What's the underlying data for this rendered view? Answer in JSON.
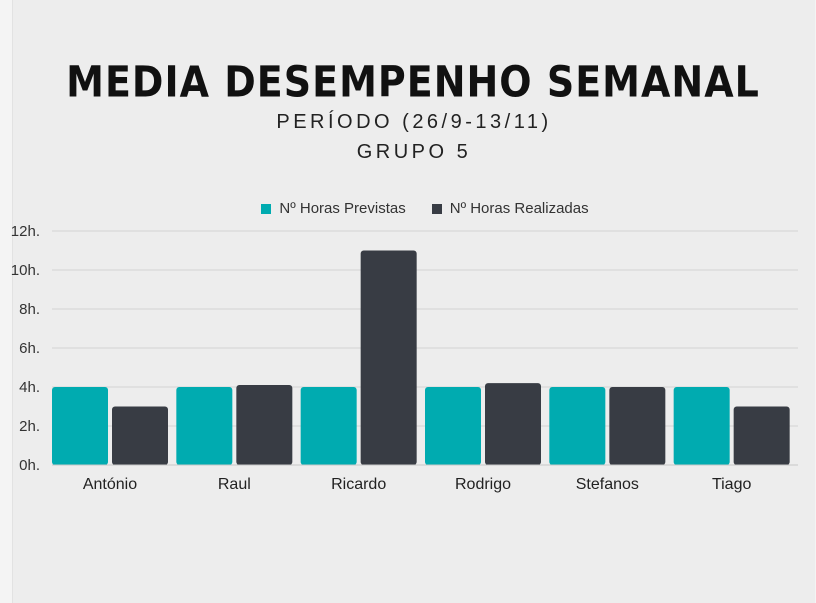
{
  "chart_data": {
    "type": "bar",
    "title": "MEDIA DESEMPENHO SEMANAL",
    "subtitle": "PERÍODO (26/9-13/11)",
    "subtitle2": "GRUPO 5",
    "categories": [
      "António",
      "Raul",
      "Ricardo",
      "Rodrigo",
      "Stefanos",
      "Tiago"
    ],
    "series": [
      {
        "name": "Nº Horas Previstas",
        "color": "#00abb0",
        "values": [
          4,
          4,
          4,
          4,
          4,
          4
        ]
      },
      {
        "name": "Nº Horas Realizadas",
        "color": "#383c44",
        "values": [
          3,
          4.1,
          11,
          4.2,
          4,
          3
        ]
      }
    ],
    "yticks": [
      "0h.",
      "2h.",
      "4h.",
      "6h.",
      "8h.",
      "10h.",
      "12h."
    ],
    "ylim": [
      0,
      12
    ],
    "grid": true,
    "legend_position": "top"
  }
}
